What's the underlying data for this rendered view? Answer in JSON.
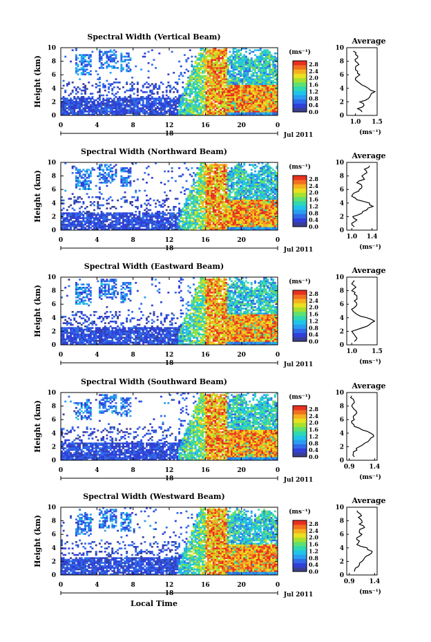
{
  "chart_data": [
    {
      "type": "heatmap",
      "title": "Spectral Width (Vertical Beam)",
      "ylabel": "Height (km)",
      "xticks": [
        "0",
        "4",
        "8",
        "12",
        "16",
        "20",
        "0"
      ],
      "yticks": [
        "0",
        "2",
        "4",
        "6",
        "8",
        "10"
      ],
      "xlim": [
        0,
        24
      ],
      "ylim": [
        0,
        10
      ],
      "date_label": "18",
      "month_year": "Jul 2011",
      "colorbar": {
        "unit": "(ms⁻¹)",
        "ticks": [
          "0.0",
          "0.4",
          "0.8",
          "1.2",
          "1.6",
          "2.0",
          "2.4",
          "2.8"
        ],
        "range": [
          0,
          3.0
        ]
      },
      "profile": {
        "title": "Average",
        "xticks": [
          "1.0",
          "1.5"
        ],
        "xlim": [
          0.8,
          1.5
        ],
        "xlabel": "(ms⁻¹)",
        "heights": [
          0.5,
          1,
          1.5,
          2,
          2.5,
          3,
          3.5,
          4,
          4.5,
          5,
          5.5,
          6,
          6.5,
          7,
          7.5,
          8,
          8.5,
          9,
          9.5
        ],
        "values": [
          1.15,
          1.05,
          1.2,
          1.1,
          1.3,
          1.35,
          1.45,
          1.3,
          1.15,
          1.05,
          1.0,
          1.1,
          1.05,
          1.0,
          1.08,
          1.0,
          1.05,
          1.0,
          0.95
        ]
      }
    },
    {
      "type": "heatmap",
      "title": "Spectral Width (Northward Beam)",
      "ylabel": "Height (km)",
      "xticks": [
        "0",
        "4",
        "8",
        "12",
        "16",
        "20",
        "0"
      ],
      "yticks": [
        "0",
        "2",
        "4",
        "6",
        "8",
        "10"
      ],
      "xlim": [
        0,
        24
      ],
      "ylim": [
        0,
        10
      ],
      "date_label": "18",
      "month_year": "Jul 2011",
      "colorbar": {
        "unit": "(ms⁻¹)",
        "ticks": [
          "0.0",
          "0.4",
          "0.8",
          "1.2",
          "1.6",
          "2.0",
          "2.4",
          "2.8"
        ],
        "range": [
          0,
          3.0
        ]
      },
      "profile": {
        "title": "Average",
        "xticks": [
          "1.0",
          "1.4"
        ],
        "xlim": [
          0.9,
          1.5
        ],
        "xlabel": "(ms⁻¹)",
        "heights": [
          0.5,
          1,
          1.5,
          2,
          2.5,
          3,
          3.5,
          4,
          4.5,
          5,
          5.5,
          6,
          6.5,
          7,
          7.5,
          8,
          8.5,
          9,
          9.5
        ],
        "values": [
          1.05,
          1.0,
          1.1,
          1.02,
          1.2,
          1.3,
          1.42,
          1.35,
          1.1,
          1.0,
          1.05,
          1.15,
          1.2,
          1.1,
          1.25,
          1.2,
          1.3,
          1.25,
          1.35
        ]
      }
    },
    {
      "type": "heatmap",
      "title": "Spectral Width (Eastward Beam)",
      "ylabel": "Height (km)",
      "xticks": [
        "0",
        "4",
        "8",
        "12",
        "16",
        "20",
        "0"
      ],
      "yticks": [
        "0",
        "2",
        "4",
        "6",
        "8",
        "10"
      ],
      "xlim": [
        0,
        24
      ],
      "ylim": [
        0,
        10
      ],
      "date_label": "18",
      "month_year": "Jul 2011",
      "colorbar": {
        "unit": "(ms⁻¹)",
        "ticks": [
          "0.0",
          "0.4",
          "0.8",
          "1.2",
          "1.6",
          "2.0",
          "2.4",
          "2.8"
        ],
        "range": [
          0,
          3.0
        ]
      },
      "profile": {
        "title": "Average",
        "xticks": [
          "1.0",
          "1.5"
        ],
        "xlim": [
          0.9,
          1.5
        ],
        "xlabel": "(ms⁻¹)",
        "heights": [
          0.5,
          1,
          1.5,
          2,
          2.5,
          3,
          3.5,
          4,
          4.5,
          5,
          5.5,
          6,
          6.5,
          7,
          7.5,
          8,
          8.5,
          9,
          9.5
        ],
        "values": [
          1.05,
          1.1,
          1.05,
          1.0,
          1.2,
          1.35,
          1.45,
          1.3,
          1.1,
          1.02,
          1.05,
          1.1,
          1.05,
          1.1,
          1.05,
          1.0,
          1.08,
          1.0,
          1.05
        ]
      }
    },
    {
      "type": "heatmap",
      "title": "Spectral Width (Southward Beam)",
      "ylabel": "Height (km)",
      "xticks": [
        "0",
        "4",
        "8",
        "12",
        "16",
        "20",
        "0"
      ],
      "yticks": [
        "0",
        "2",
        "4",
        "6",
        "8",
        "10"
      ],
      "xlim": [
        0,
        24
      ],
      "ylim": [
        0,
        10
      ],
      "date_label": "18",
      "month_year": "Jul 2011",
      "colorbar": {
        "unit": "(ms⁻¹)",
        "ticks": [
          "0.0",
          "0.4",
          "0.8",
          "1.2",
          "1.6",
          "2.0",
          "2.4",
          "2.8"
        ],
        "range": [
          0,
          3.0
        ]
      },
      "profile": {
        "title": "Average",
        "xticks": [
          "0.9",
          "1.4"
        ],
        "xlim": [
          0.85,
          1.45
        ],
        "xlabel": "(ms⁻¹)",
        "heights": [
          0.5,
          1,
          1.5,
          2,
          2.5,
          3,
          3.5,
          4,
          4.5,
          5,
          5.5,
          6,
          6.5,
          7,
          7.5,
          8,
          8.5,
          9,
          9.5
        ],
        "values": [
          1.0,
          0.98,
          1.05,
          1.1,
          1.2,
          1.3,
          1.38,
          1.32,
          1.15,
          1.0,
          0.95,
          1.0,
          0.98,
          1.05,
          1.0,
          0.95,
          1.0,
          0.98,
          0.95
        ]
      }
    },
    {
      "type": "heatmap",
      "title": "Spectral Width (Westward Beam)",
      "ylabel": "Height (km)",
      "xlabel": "Local Time",
      "xticks": [
        "0",
        "4",
        "8",
        "12",
        "16",
        "20",
        "0"
      ],
      "yticks": [
        "0",
        "2",
        "4",
        "6",
        "8",
        "10"
      ],
      "xlim": [
        0,
        24
      ],
      "ylim": [
        0,
        10
      ],
      "date_label": "18",
      "month_year": "Jul 2011",
      "colorbar": {
        "unit": "(ms⁻¹)",
        "ticks": [
          "0.0",
          "0.4",
          "0.8",
          "1.2",
          "1.6",
          "2.0",
          "2.4",
          "2.8"
        ],
        "range": [
          0,
          3.0
        ]
      },
      "profile": {
        "title": "Average",
        "xticks": [
          "0.9",
          "1.4"
        ],
        "xlim": [
          0.85,
          1.45
        ],
        "xlabel": "(ms⁻¹)",
        "heights": [
          0.5,
          1,
          1.5,
          2,
          2.5,
          3,
          3.5,
          4,
          4.5,
          5,
          5.5,
          6,
          6.5,
          7,
          7.5,
          8,
          8.5,
          9,
          9.5
        ],
        "values": [
          1.0,
          1.02,
          1.1,
          1.15,
          1.2,
          1.3,
          1.35,
          1.25,
          1.05,
          1.1,
          1.05,
          1.15,
          1.1,
          1.2,
          1.1,
          1.15,
          1.08,
          1.12,
          1.05
        ]
      }
    }
  ],
  "colors": {
    "colormap": [
      "#3a3f8f",
      "#3040d8",
      "#2f6be8",
      "#2a9ef0",
      "#20c4e8",
      "#30d8b0",
      "#60e070",
      "#a8e030",
      "#e8e020",
      "#f5b020",
      "#f07020",
      "#e83020"
    ]
  }
}
